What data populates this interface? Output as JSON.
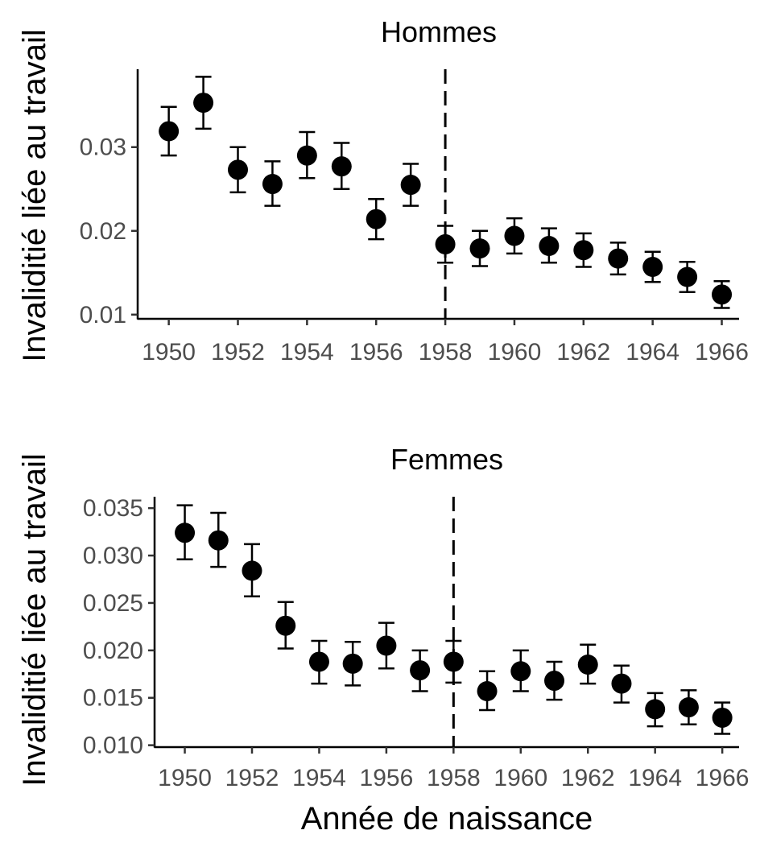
{
  "chart_data": [
    {
      "type": "scatter",
      "title": "Hommes",
      "xlabel": "",
      "ylabel": "Invaliditié liée au travail",
      "x": [
        1950,
        1951,
        1952,
        1953,
        1954,
        1955,
        1956,
        1957,
        1958,
        1959,
        1960,
        1961,
        1962,
        1963,
        1964,
        1965,
        1966
      ],
      "y": [
        0.0319,
        0.0353,
        0.0273,
        0.0256,
        0.029,
        0.0277,
        0.0214,
        0.0255,
        0.0184,
        0.0179,
        0.0194,
        0.0182,
        0.0177,
        0.0167,
        0.0157,
        0.0145,
        0.0124
      ],
      "y_low": [
        0.029,
        0.0322,
        0.0246,
        0.023,
        0.0263,
        0.025,
        0.019,
        0.023,
        0.0162,
        0.0158,
        0.0173,
        0.0162,
        0.0157,
        0.0148,
        0.0139,
        0.0127,
        0.0108
      ],
      "y_high": [
        0.0348,
        0.0384,
        0.03,
        0.0283,
        0.0318,
        0.0305,
        0.0238,
        0.028,
        0.0206,
        0.02,
        0.0215,
        0.0203,
        0.0197,
        0.0186,
        0.0175,
        0.0163,
        0.014
      ],
      "vline": 1958,
      "xticks": [
        1950,
        1952,
        1954,
        1956,
        1958,
        1960,
        1962,
        1964,
        1966
      ],
      "xtick_labels": [
        "1950",
        "1952",
        "1954",
        "1956",
        "1958",
        "1960",
        "1962",
        "1964",
        "1966"
      ],
      "yticks": [
        0.01,
        0.02,
        0.03
      ],
      "ytick_labels": [
        "0.01",
        "0.02",
        "0.03"
      ],
      "xlim": [
        1949.1,
        1966.5
      ],
      "ylim": [
        0.0095,
        0.0393
      ],
      "grid": false,
      "color": "#000000"
    },
    {
      "type": "scatter",
      "title": "Femmes",
      "xlabel": "Année de naissance",
      "ylabel": "Invaliditié liée au travail",
      "x": [
        1950,
        1951,
        1952,
        1953,
        1954,
        1955,
        1956,
        1957,
        1958,
        1959,
        1960,
        1961,
        1962,
        1963,
        1964,
        1965,
        1966
      ],
      "y": [
        0.0324,
        0.0316,
        0.0284,
        0.0226,
        0.0188,
        0.0186,
        0.0205,
        0.0179,
        0.0188,
        0.0157,
        0.0178,
        0.0168,
        0.0185,
        0.0165,
        0.0138,
        0.014,
        0.0129
      ],
      "y_low": [
        0.0296,
        0.0288,
        0.0257,
        0.0202,
        0.0165,
        0.0163,
        0.0181,
        0.0157,
        0.0166,
        0.0137,
        0.0157,
        0.0148,
        0.0165,
        0.0145,
        0.012,
        0.0122,
        0.0112
      ],
      "y_high": [
        0.0353,
        0.0345,
        0.0312,
        0.0251,
        0.021,
        0.0209,
        0.0229,
        0.02,
        0.021,
        0.0178,
        0.02,
        0.0188,
        0.0206,
        0.0184,
        0.0155,
        0.0158,
        0.0145
      ],
      "vline": 1958,
      "xticks": [
        1950,
        1952,
        1954,
        1956,
        1958,
        1960,
        1962,
        1964,
        1966
      ],
      "xtick_labels": [
        "1950",
        "1952",
        "1954",
        "1956",
        "1958",
        "1960",
        "1962",
        "1964",
        "1966"
      ],
      "yticks": [
        0.01,
        0.015,
        0.02,
        0.025,
        0.03,
        0.035
      ],
      "ytick_labels": [
        "0.010",
        "0.015",
        "0.020",
        "0.025",
        "0.030",
        "0.035"
      ],
      "xlim": [
        1949.1,
        1966.5
      ],
      "ylim": [
        0.0098,
        0.0362
      ],
      "grid": false,
      "color": "#000000"
    }
  ]
}
